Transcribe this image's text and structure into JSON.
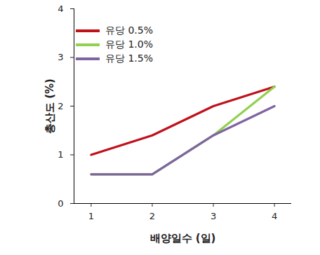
{
  "chart_data": {
    "type": "line",
    "x_label": "배양일수 (일)",
    "y_label": "총산도 (%)",
    "x": [
      1,
      2,
      3,
      4
    ],
    "series": [
      {
        "name": "유당 0.5%",
        "color": "#c0101a",
        "values": [
          1.0,
          1.4,
          2.0,
          2.4
        ]
      },
      {
        "name": "유당 1.0%",
        "color": "#92d050",
        "values": [
          0.6,
          0.6,
          1.4,
          2.4
        ]
      },
      {
        "name": "유당 1.5%",
        "color": "#8064a2",
        "values": [
          0.6,
          0.6,
          1.4,
          2.0
        ]
      }
    ],
    "xlim": [
      0.72,
      4.28
    ],
    "xticks": [
      1,
      2,
      3,
      4
    ],
    "ylim": [
      0,
      4
    ],
    "yticks": [
      0,
      1,
      2,
      3,
      4
    ],
    "grid": false,
    "legend": "top-left"
  }
}
